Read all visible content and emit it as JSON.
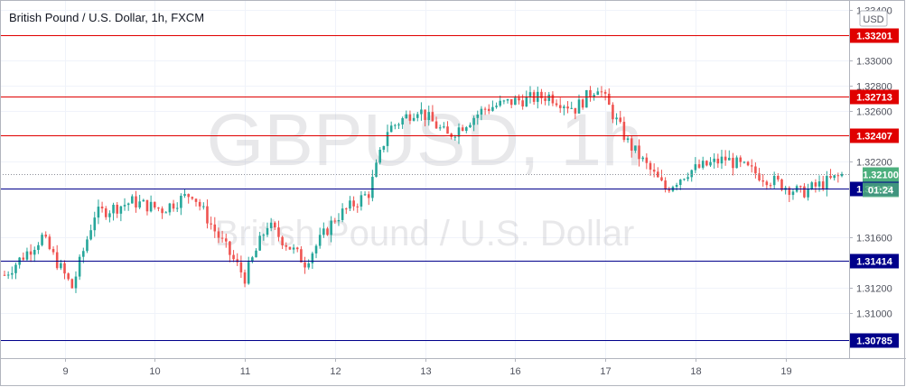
{
  "header": {
    "title": "British Pound / U.S. Dollar, 1h, FXCM"
  },
  "watermark": {
    "line1": "GBPUSD, 1h",
    "line2": "British Pound / U.S. Dollar"
  },
  "currency": "USD",
  "countdown": "01:24",
  "colors": {
    "up": "#26a69a",
    "down": "#ef5350",
    "resistance": "#e00000",
    "support": "#00008b",
    "last_price": "#4caf7d"
  },
  "chart_data": {
    "type": "candlestick",
    "ylim": [
      1.3064,
      1.3348
    ],
    "y_ticks": [
      "1.31000",
      "1.31200",
      "1.31600",
      "1.32200",
      "1.32600",
      "1.32800",
      "1.33000",
      "1.33400"
    ],
    "x_ticks": [
      "9",
      "10",
      "11",
      "12",
      "13",
      "16",
      "17",
      "18",
      "19"
    ],
    "levels": [
      {
        "label": "1.33201",
        "value": 1.33201,
        "kind": "resistance"
      },
      {
        "label": "1.32713",
        "value": 1.32713,
        "kind": "resistance"
      },
      {
        "label": "1.32407",
        "value": 1.32407,
        "kind": "resistance"
      },
      {
        "label": "1.31985",
        "value": 1.31985,
        "kind": "support"
      },
      {
        "label": "1.31414",
        "value": 1.31414,
        "kind": "support"
      },
      {
        "label": "1.30785",
        "value": 1.30785,
        "kind": "support"
      }
    ],
    "last_price": {
      "label": "1.32100",
      "value": 1.321
    },
    "candle_count": 224,
    "path": [
      [
        0,
        1.313
      ],
      [
        10,
        1.316
      ],
      [
        18,
        1.312
      ],
      [
        24,
        1.3178
      ],
      [
        34,
        1.3188
      ],
      [
        42,
        1.3182
      ],
      [
        50,
        1.3195
      ],
      [
        56,
        1.3165
      ],
      [
        64,
        1.3128
      ],
      [
        70,
        1.317
      ],
      [
        80,
        1.314
      ],
      [
        88,
        1.3175
      ],
      [
        97,
        1.3195
      ],
      [
        102,
        1.3245
      ],
      [
        110,
        1.3262
      ],
      [
        118,
        1.324
      ],
      [
        128,
        1.3262
      ],
      [
        136,
        1.3268
      ],
      [
        145,
        1.3272
      ],
      [
        152,
        1.3262
      ],
      [
        158,
        1.328
      ],
      [
        166,
        1.3235
      ],
      [
        176,
        1.3198
      ],
      [
        182,
        1.3212
      ],
      [
        192,
        1.3222
      ],
      [
        202,
        1.3208
      ],
      [
        212,
        1.3195
      ],
      [
        224,
        1.321
      ]
    ]
  }
}
